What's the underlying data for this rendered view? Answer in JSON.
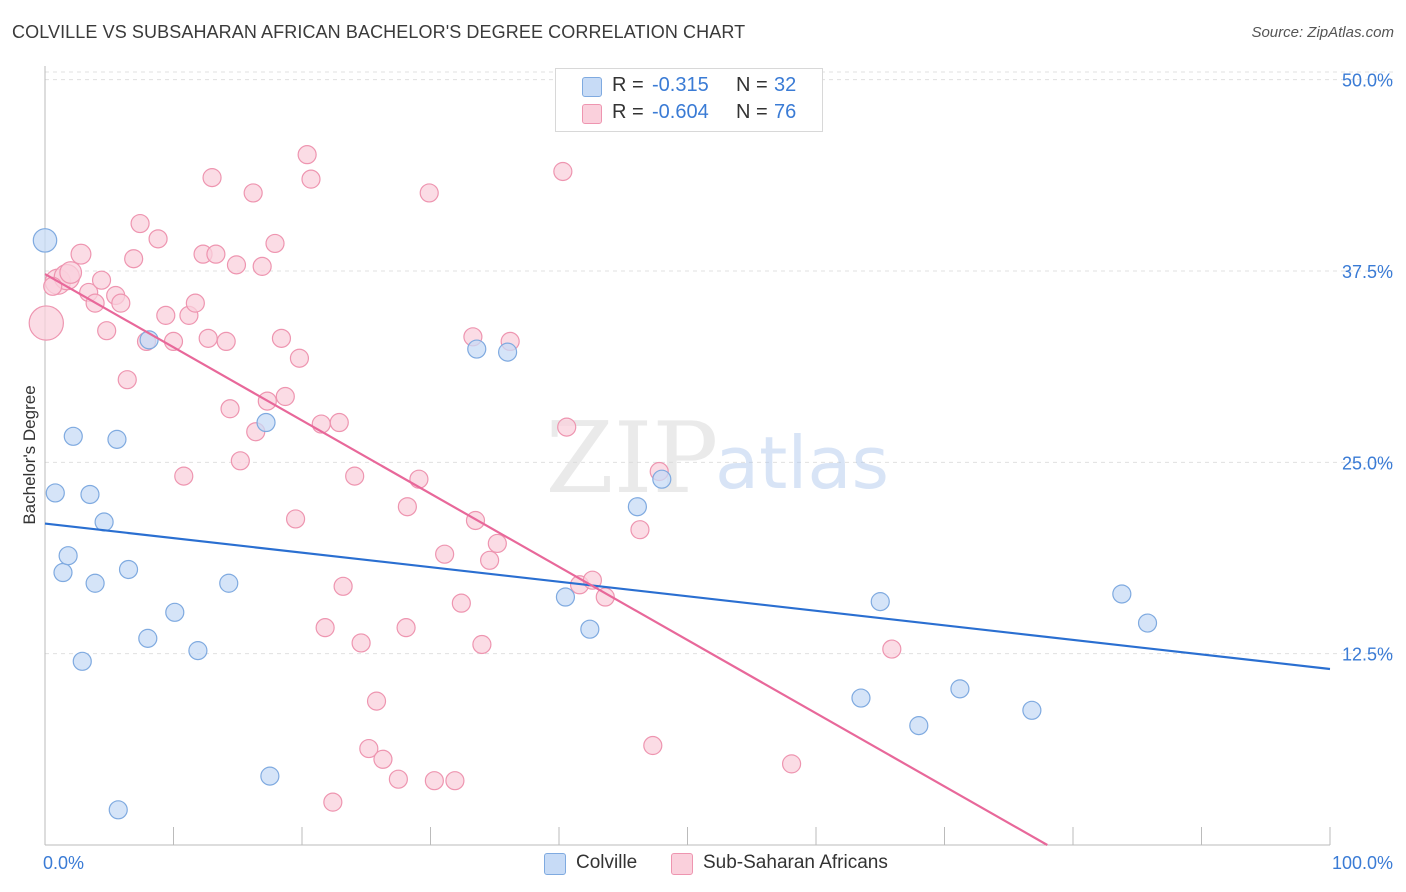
{
  "header": {
    "title": "COLVILLE VS SUBSAHARAN AFRICAN BACHELOR'S DEGREE CORRELATION CHART",
    "source": "Source: ZipAtlas.com"
  },
  "legend_top": {
    "rows": [
      {
        "r_label": "R =",
        "r_value": "-0.315",
        "n_label": "N =",
        "n_value": "32"
      },
      {
        "r_label": "R =",
        "r_value": "-0.604",
        "n_label": "N =",
        "n_value": "76"
      }
    ]
  },
  "legend_bottom": {
    "items": [
      {
        "label": "Colville"
      },
      {
        "label": "Sub-Saharan Africans"
      }
    ]
  },
  "colors": {
    "blue_fill": "#c7dbf6",
    "blue_stroke": "#7faae0",
    "blue_line": "#2a6fd1",
    "pink_fill": "#fad0dc",
    "pink_stroke": "#ee95b0",
    "pink_line": "#e8689a",
    "tick_label": "#3a7bd5",
    "grid": "#e0e0e0"
  },
  "chart_data": {
    "type": "scatter",
    "title": "COLVILLE VS SUBSAHARAN AFRICAN BACHELOR'S DEGREE CORRELATION CHART",
    "xlabel": "",
    "ylabel": "Bachelor's Degree",
    "xlim": [
      0,
      100
    ],
    "ylim": [
      0,
      50.5
    ],
    "x_tick_labels": [
      "0.0%",
      "100.0%"
    ],
    "y_ticks": [
      12.5,
      25.0,
      37.5,
      50.0
    ],
    "y_tick_labels": [
      "12.5%",
      "25.0%",
      "37.5%",
      "50.0%"
    ],
    "grid": true,
    "legend_position": "top-center",
    "watermark": {
      "zip": "ZIP",
      "atlas": "atlas"
    },
    "series": [
      {
        "name": "Colville",
        "r": -0.315,
        "n": 32,
        "trend": {
          "x0": 0,
          "y0": 21.0,
          "x1": 100,
          "y1": 11.5
        },
        "points": [
          {
            "x": 0.0,
            "y": 39.5,
            "s": 1.3
          },
          {
            "x": 0.8,
            "y": 23.0
          },
          {
            "x": 1.4,
            "y": 17.8
          },
          {
            "x": 1.8,
            "y": 18.9
          },
          {
            "x": 2.2,
            "y": 26.7
          },
          {
            "x": 2.9,
            "y": 12.0
          },
          {
            "x": 3.5,
            "y": 22.9
          },
          {
            "x": 3.9,
            "y": 17.1
          },
          {
            "x": 4.6,
            "y": 21.1
          },
          {
            "x": 5.6,
            "y": 26.5
          },
          {
            "x": 5.7,
            "y": 2.3
          },
          {
            "x": 6.5,
            "y": 18.0
          },
          {
            "x": 8.1,
            "y": 33.0
          },
          {
            "x": 8.0,
            "y": 13.5
          },
          {
            "x": 10.1,
            "y": 15.2
          },
          {
            "x": 11.9,
            "y": 12.7
          },
          {
            "x": 14.3,
            "y": 17.1
          },
          {
            "x": 17.2,
            "y": 27.6
          },
          {
            "x": 17.5,
            "y": 4.5
          },
          {
            "x": 33.6,
            "y": 32.4
          },
          {
            "x": 36.0,
            "y": 32.2
          },
          {
            "x": 40.5,
            "y": 16.2
          },
          {
            "x": 42.4,
            "y": 14.1
          },
          {
            "x": 46.1,
            "y": 22.1
          },
          {
            "x": 48.0,
            "y": 23.9
          },
          {
            "x": 63.5,
            "y": 9.6
          },
          {
            "x": 65.0,
            "y": 15.9
          },
          {
            "x": 68.0,
            "y": 7.8
          },
          {
            "x": 71.2,
            "y": 10.2
          },
          {
            "x": 76.8,
            "y": 8.8
          },
          {
            "x": 83.8,
            "y": 16.4
          },
          {
            "x": 85.8,
            "y": 14.5
          }
        ]
      },
      {
        "name": "Sub-Saharan Africans",
        "r": -0.604,
        "n": 76,
        "trend": {
          "x0": 0,
          "y0": 37.3,
          "x1": 78,
          "y1": 0
        },
        "points": [
          {
            "x": 0.1,
            "y": 34.1,
            "s": 1.9
          },
          {
            "x": 1.0,
            "y": 36.8,
            "s": 1.4
          },
          {
            "x": 1.7,
            "y": 37.1,
            "s": 1.4
          },
          {
            "x": 2.0,
            "y": 37.4,
            "s": 1.2
          },
          {
            "x": 2.8,
            "y": 38.6,
            "s": 1.1
          },
          {
            "x": 3.4,
            "y": 36.1
          },
          {
            "x": 3.9,
            "y": 35.4
          },
          {
            "x": 4.4,
            "y": 36.9
          },
          {
            "x": 4.8,
            "y": 33.6
          },
          {
            "x": 5.5,
            "y": 35.9
          },
          {
            "x": 5.9,
            "y": 35.4
          },
          {
            "x": 6.4,
            "y": 30.4
          },
          {
            "x": 6.9,
            "y": 38.3
          },
          {
            "x": 7.4,
            "y": 40.6
          },
          {
            "x": 7.9,
            "y": 32.9
          },
          {
            "x": 8.8,
            "y": 39.6
          },
          {
            "x": 9.4,
            "y": 34.6
          },
          {
            "x": 10.0,
            "y": 32.9
          },
          {
            "x": 10.8,
            "y": 24.1
          },
          {
            "x": 11.2,
            "y": 34.6
          },
          {
            "x": 11.7,
            "y": 35.4
          },
          {
            "x": 12.3,
            "y": 38.6
          },
          {
            "x": 12.7,
            "y": 33.1
          },
          {
            "x": 13.0,
            "y": 43.6
          },
          {
            "x": 13.3,
            "y": 38.6
          },
          {
            "x": 14.1,
            "y": 32.9
          },
          {
            "x": 14.4,
            "y": 28.5
          },
          {
            "x": 14.9,
            "y": 37.9
          },
          {
            "x": 15.2,
            "y": 25.1
          },
          {
            "x": 16.2,
            "y": 42.6
          },
          {
            "x": 16.4,
            "y": 27.0
          },
          {
            "x": 16.9,
            "y": 37.8
          },
          {
            "x": 17.3,
            "y": 29.0
          },
          {
            "x": 17.9,
            "y": 39.3
          },
          {
            "x": 18.4,
            "y": 33.1
          },
          {
            "x": 18.7,
            "y": 29.3
          },
          {
            "x": 19.5,
            "y": 21.3
          },
          {
            "x": 19.8,
            "y": 31.8
          },
          {
            "x": 20.4,
            "y": 45.1
          },
          {
            "x": 20.7,
            "y": 43.5
          },
          {
            "x": 21.5,
            "y": 27.5
          },
          {
            "x": 21.8,
            "y": 14.2
          },
          {
            "x": 22.4,
            "y": 2.8
          },
          {
            "x": 22.9,
            "y": 27.6
          },
          {
            "x": 23.2,
            "y": 16.9
          },
          {
            "x": 24.1,
            "y": 24.1
          },
          {
            "x": 24.6,
            "y": 13.2
          },
          {
            "x": 25.2,
            "y": 6.3
          },
          {
            "x": 25.8,
            "y": 9.4
          },
          {
            "x": 26.3,
            "y": 5.6
          },
          {
            "x": 27.5,
            "y": 4.3
          },
          {
            "x": 28.1,
            "y": 14.2
          },
          {
            "x": 28.2,
            "y": 22.1
          },
          {
            "x": 29.1,
            "y": 23.9
          },
          {
            "x": 29.9,
            "y": 42.6
          },
          {
            "x": 30.3,
            "y": 4.2
          },
          {
            "x": 31.1,
            "y": 19.0
          },
          {
            "x": 31.9,
            "y": 4.2
          },
          {
            "x": 32.4,
            "y": 15.8
          },
          {
            "x": 33.3,
            "y": 33.2
          },
          {
            "x": 33.5,
            "y": 21.2
          },
          {
            "x": 34.0,
            "y": 13.1
          },
          {
            "x": 34.6,
            "y": 18.6
          },
          {
            "x": 35.2,
            "y": 19.7
          },
          {
            "x": 36.2,
            "y": 32.9
          },
          {
            "x": 40.3,
            "y": 44.0
          },
          {
            "x": 40.6,
            "y": 27.3
          },
          {
            "x": 41.6,
            "y": 17.0
          },
          {
            "x": 42.6,
            "y": 17.3
          },
          {
            "x": 43.6,
            "y": 16.2
          },
          {
            "x": 46.3,
            "y": 20.6
          },
          {
            "x": 47.3,
            "y": 6.5
          },
          {
            "x": 47.8,
            "y": 24.4
          },
          {
            "x": 58.1,
            "y": 5.3
          },
          {
            "x": 65.9,
            "y": 12.8
          },
          {
            "x": 0.6,
            "y": 36.5
          }
        ]
      }
    ]
  }
}
